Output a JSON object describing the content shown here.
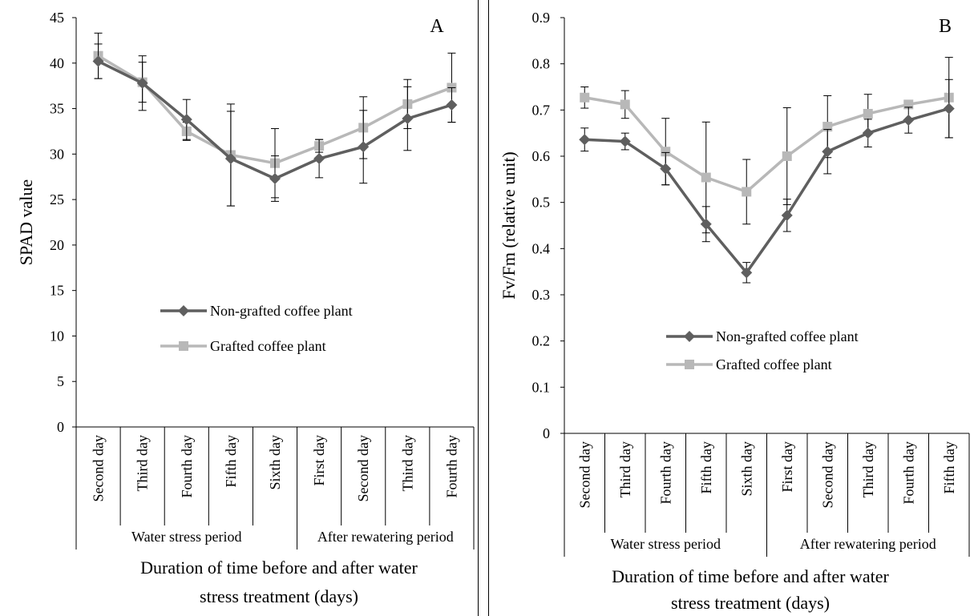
{
  "colors": {
    "non_grafted": "#5f5f5f",
    "grafted": "#b8b8b8",
    "axis": "#000000"
  },
  "chart_data": [
    {
      "id": "A",
      "type": "line",
      "panel_label": "A",
      "ylabel": "SPAD value",
      "xlabel": "Duration of time before and after water stress treatment (days)",
      "xlabel_lines": [
        "Duration of time before and after water",
        "stress treatment (days)"
      ],
      "ylim": [
        0,
        45
      ],
      "yticks": [
        "0",
        "5",
        "10",
        "15",
        "20",
        "25",
        "30",
        "35",
        "40",
        "45"
      ],
      "categories": [
        "Second day",
        "Third day",
        "Fourth day",
        "Fifth day",
        "Sixth day",
        "First day",
        "Second day",
        "Third day",
        "Fourth day"
      ],
      "groups": [
        {
          "label": "Water stress period",
          "count": 5
        },
        {
          "label": "After rewatering period",
          "count": 4
        }
      ],
      "legend": "center",
      "grid": false,
      "series": [
        {
          "name": "Non-grafted coffee plant",
          "marker": "diamond",
          "values": [
            40.2,
            37.8,
            33.8,
            29.5,
            27.3,
            29.5,
            30.8,
            33.9,
            35.4
          ],
          "errors": [
            1.9,
            3.0,
            2.2,
            5.2,
            2.5,
            2.1,
            4.0,
            3.5,
            1.9
          ]
        },
        {
          "name": "Grafted coffee plant",
          "marker": "square",
          "values": [
            40.8,
            37.9,
            32.5,
            29.9,
            29.0,
            30.9,
            32.9,
            35.5,
            37.3
          ],
          "errors": [
            2.5,
            2.2,
            1.0,
            5.6,
            3.8,
            0.7,
            3.4,
            2.7,
            3.8
          ]
        }
      ]
    },
    {
      "id": "B",
      "type": "line",
      "panel_label": "B",
      "ylabel": "Fv/Fm (relative unit)",
      "xlabel": "Duration of time before and after water stress treatment (days)",
      "xlabel_lines": [
        "Duration of time before and after water",
        "stress treatment (days)"
      ],
      "ylim": [
        0,
        0.9
      ],
      "yticks": [
        "0",
        "0.1",
        "0.2",
        "0.3",
        "0.4",
        "0.5",
        "0.6",
        "0.7",
        "0.8",
        "0.9"
      ],
      "categories": [
        "Second day",
        "Third day",
        "Fourth day",
        "Fifth day",
        "Sixth day",
        "First day",
        "Second day",
        "Third day",
        "Fourth day",
        "Fifth day"
      ],
      "groups": [
        {
          "label": "Water stress period",
          "count": 5
        },
        {
          "label": "After rewatering period",
          "count": 5
        }
      ],
      "legend": "center",
      "grid": false,
      "series": [
        {
          "name": "Non-grafted coffee plant",
          "marker": "diamond",
          "values": [
            0.636,
            0.632,
            0.573,
            0.453,
            0.348,
            0.472,
            0.61,
            0.65,
            0.678,
            0.703
          ],
          "errors": [
            0.025,
            0.018,
            0.035,
            0.038,
            0.022,
            0.035,
            0.048,
            0.03,
            0.028,
            0.063
          ]
        },
        {
          "name": "Grafted coffee plant",
          "marker": "square",
          "values": [
            0.727,
            0.712,
            0.61,
            0.554,
            0.523,
            0.6,
            0.664,
            0.692,
            0.712,
            0.727
          ],
          "errors": [
            0.023,
            0.03,
            0.072,
            0.12,
            0.07,
            0.105,
            0.067,
            0.042,
            0.008,
            0.087
          ]
        }
      ]
    }
  ]
}
